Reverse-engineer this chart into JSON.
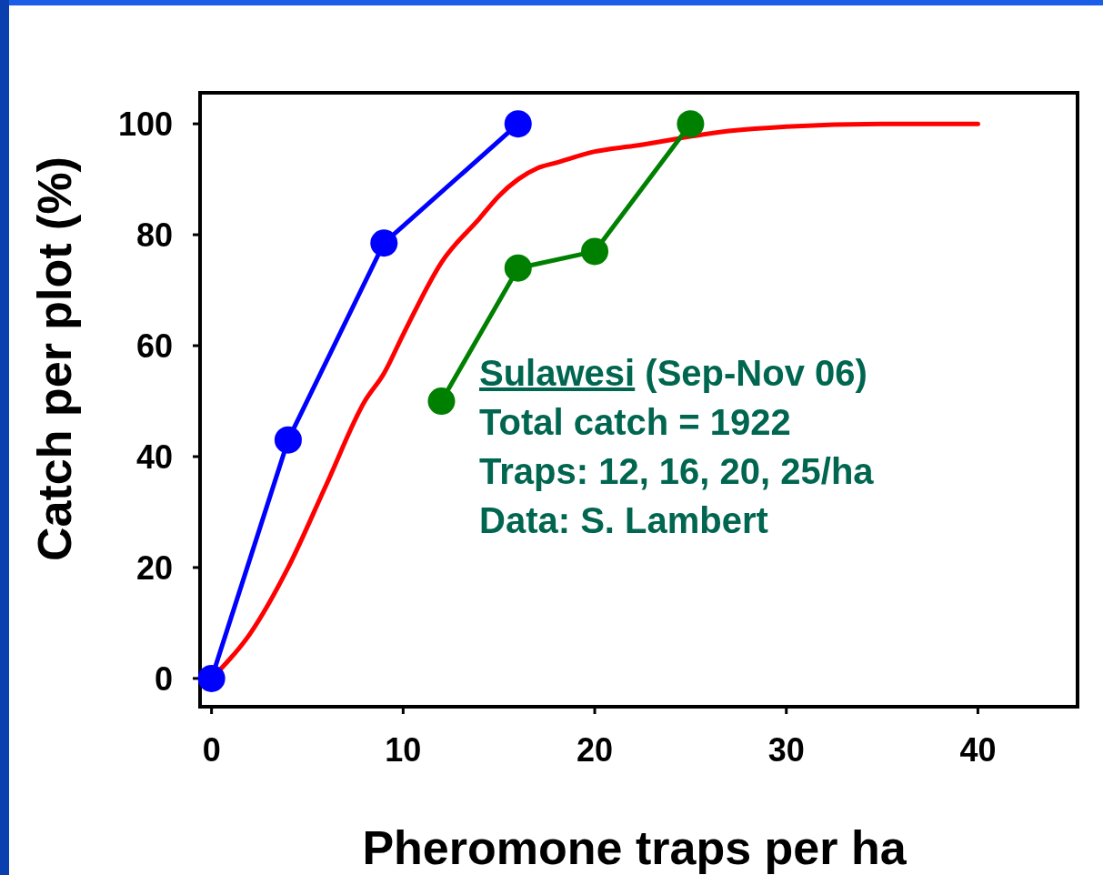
{
  "chart_data": {
    "type": "line",
    "xlabel": "Pheromone traps per ha",
    "ylabel": "Catch per plot (%)",
    "xlim": [
      -0.6,
      45.2
    ],
    "ylim": [
      -5.1,
      105.6
    ],
    "xticks": [
      0,
      10,
      20,
      30,
      40
    ],
    "yticks": [
      0,
      20,
      40,
      60,
      80,
      100
    ],
    "grid": false,
    "line_style": "solid",
    "annotations": [
      "Sulawesi (Sep-Nov 06)",
      "Total catch = 1922",
      "Traps: 12, 16, 20, 25/ha",
      "Data: S. Lambert"
    ],
    "series": [
      {
        "color": "#ff0000",
        "marker": "none",
        "x": [
          0,
          2,
          4,
          6,
          8,
          9,
          10,
          12,
          14,
          15,
          16,
          17,
          18,
          20,
          22,
          27,
          30,
          35,
          40
        ],
        "values": [
          0,
          8,
          20,
          35,
          50,
          55,
          62,
          75,
          83,
          87,
          90,
          92,
          93,
          95,
          96,
          98.7,
          99.5,
          100,
          100
        ]
      },
      {
        "color": "#0000ff",
        "marker": "circle",
        "x": [
          0,
          4,
          9,
          16
        ],
        "values": [
          0,
          43,
          78.5,
          100
        ]
      },
      {
        "color": "#008000",
        "marker": "circle",
        "x": [
          12,
          16,
          20,
          25
        ],
        "values": [
          50,
          74,
          77,
          100
        ]
      }
    ]
  }
}
